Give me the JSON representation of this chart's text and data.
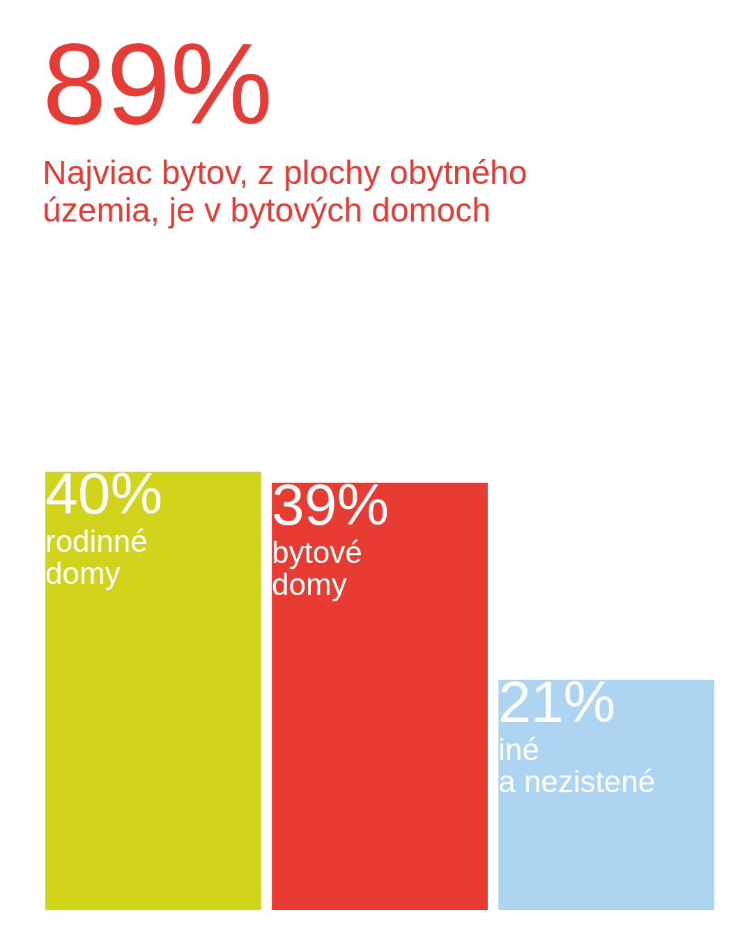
{
  "chart_data": {
    "type": "bar",
    "title": "89%",
    "subtitle": "Najviac bytov, z plochy obytného\núzemia, je v bytových domoch",
    "categories": [
      "rodinné\ndomy",
      "bytové\ndomy",
      "iné\na nezistené"
    ],
    "values": [
      40,
      39,
      21
    ],
    "colors": [
      "#d2d31b",
      "#e83c33",
      "#add5f2"
    ],
    "value_labels": [
      "40%",
      "39%",
      "21%"
    ]
  }
}
